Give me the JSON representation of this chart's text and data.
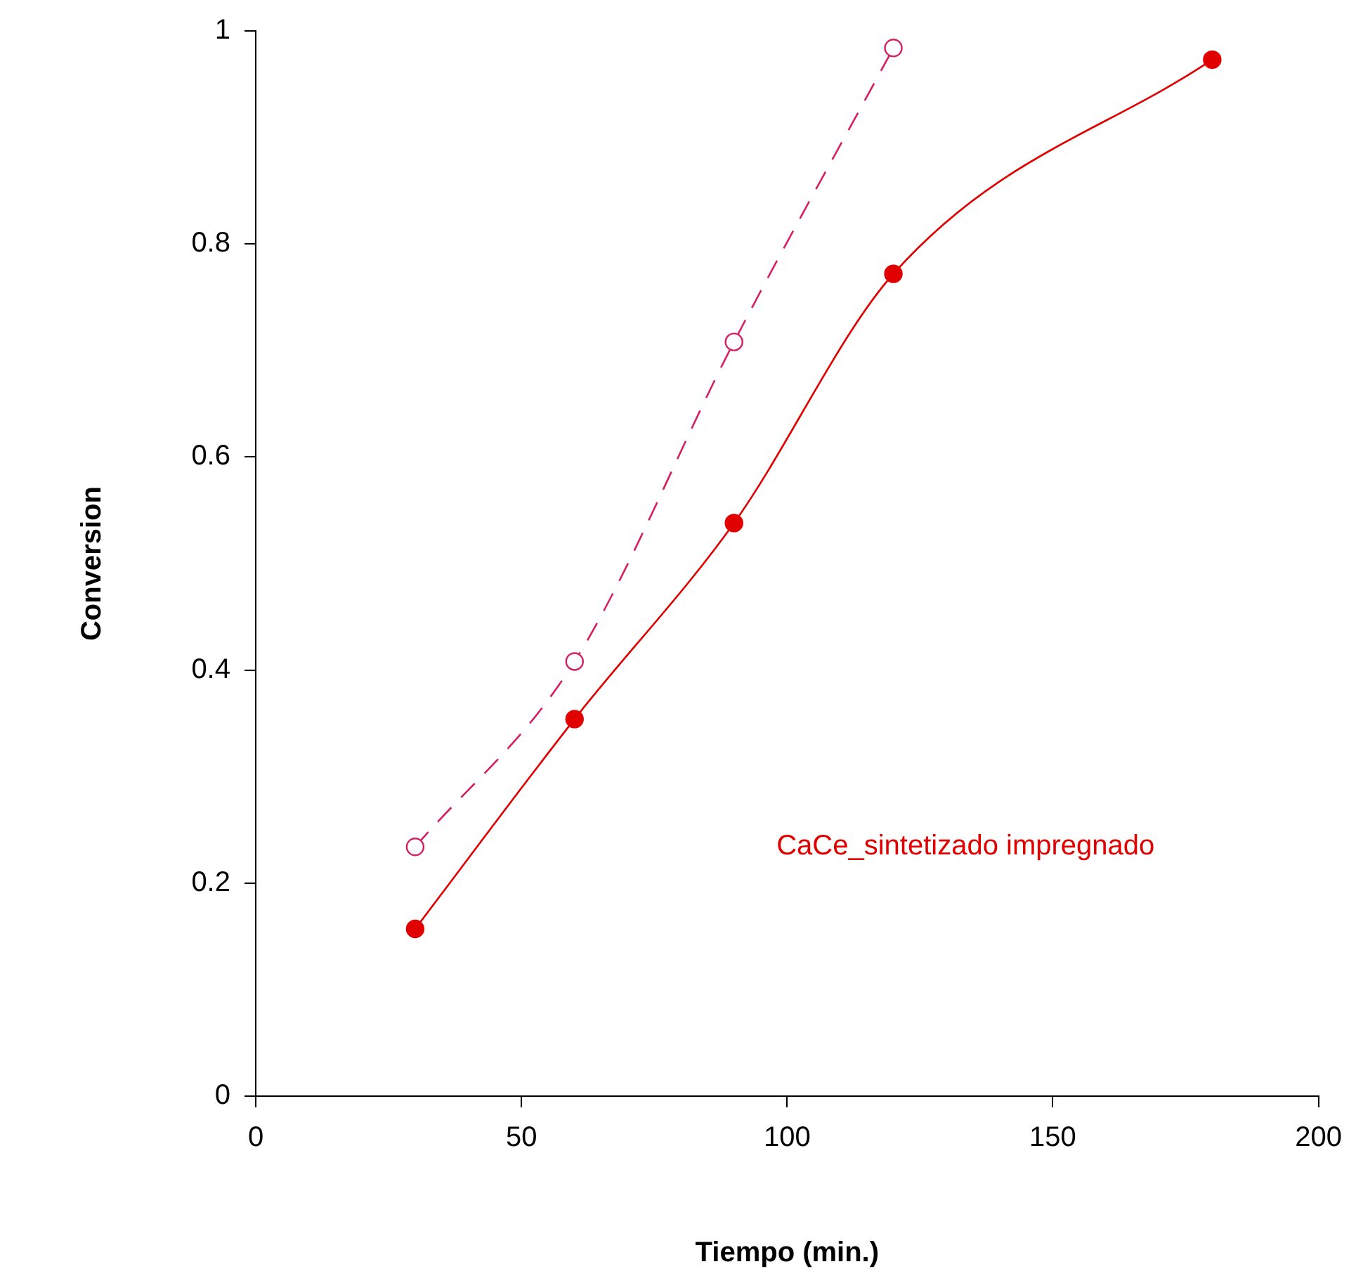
{
  "chart_data": {
    "type": "line",
    "xlabel": "Tiempo (min.)",
    "ylabel": "Conversion",
    "x": [
      30,
      60,
      90,
      120,
      180
    ],
    "series": [
      {
        "name": "CaCe_sintetizado impregnado",
        "color": "#e00000",
        "values": [
          0.157,
          0.354,
          0.538,
          0.772,
          0.973
        ],
        "line_style": "solid"
      },
      {
        "color": "#d6205c",
        "x": [
          30,
          60,
          90,
          120
        ],
        "values": [
          0.234,
          0.408,
          0.708,
          0.984
        ],
        "line_style": "dashed"
      }
    ],
    "xlim": [
      0,
      200
    ],
    "xticks": [
      0,
      50,
      100,
      150,
      200
    ],
    "ylim": [
      0,
      1
    ],
    "yticks": [
      0,
      0.2,
      0.4,
      0.6,
      0.8,
      1
    ],
    "grid": false,
    "legend": false,
    "marker": "circle"
  }
}
